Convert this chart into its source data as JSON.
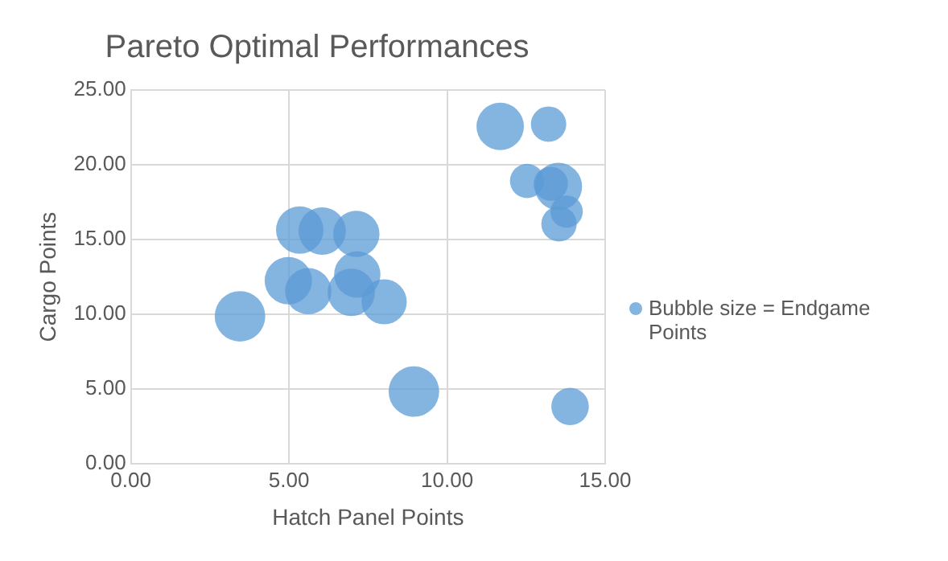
{
  "chart_data": {
    "type": "bubble",
    "title": "Pareto Optimal Performances",
    "xlabel": "Hatch Panel Points",
    "ylabel": "Cargo Points",
    "x": [
      11.68,
      13.21,
      12.53,
      13.52,
      13.28,
      13.78,
      13.54,
      13.89,
      8.95,
      3.45,
      4.98,
      5.61,
      5.34,
      6.05,
      7.13,
      7.16,
      6.97,
      8.01
    ],
    "series": [
      {
        "name": "Bubble size = Endgame Points",
        "color": "#5b9bd5",
        "values": [
          22.57,
          22.72,
          18.92,
          18.55,
          18.73,
          16.87,
          16.05,
          3.84,
          4.84,
          9.87,
          12.25,
          11.55,
          15.64,
          15.57,
          15.38,
          12.66,
          11.47,
          10.84
        ],
        "sizes": [
          0.88,
          0.49,
          0.46,
          0.88,
          0.46,
          0.41,
          0.49,
          0.55,
          1,
          1,
          0.88,
          0.84,
          0.88,
          0.88,
          0.84,
          0.84,
          0.88,
          0.8
        ]
      }
    ],
    "xlim": [
      0,
      15
    ],
    "xticks": [
      {
        "value": 0,
        "label": "0.00"
      },
      {
        "value": 5,
        "label": "5.00"
      },
      {
        "value": 10,
        "label": "10.00"
      },
      {
        "value": 15,
        "label": "15.00"
      }
    ],
    "ylim": [
      0,
      25
    ],
    "yticks": [
      {
        "value": 0,
        "label": "0.00"
      },
      {
        "value": 5,
        "label": "5.00"
      },
      {
        "value": 10,
        "label": "10.00"
      },
      {
        "value": 15,
        "label": "15.00"
      },
      {
        "value": 20,
        "label": "20.00"
      },
      {
        "value": 25,
        "label": "25.00"
      }
    ],
    "grid": true,
    "legend": "right"
  }
}
